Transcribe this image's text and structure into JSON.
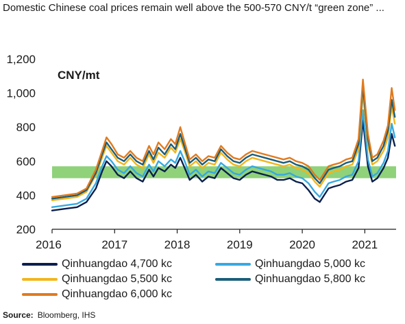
{
  "title": "Domestic Chinese coal prices remain well above the 500-570 CNY/t “green zone” ...",
  "source": {
    "label": "Source:",
    "text": "Bloomberg, IHS"
  },
  "chart_data": {
    "type": "line",
    "title": "Domestic Chinese coal prices remain well above the 500-570 CNY/t “green zone” ...",
    "ylabel": "CNY/mt",
    "xlabel": "",
    "xlim": [
      2016,
      2021.5
    ],
    "ylim": [
      200,
      1200
    ],
    "x_ticks": [
      "2016",
      "2017",
      "2018",
      "2019",
      "2020",
      "2021"
    ],
    "y_ticks": [
      "200",
      "400",
      "600",
      "800",
      "1,000",
      "1,200"
    ],
    "grid": false,
    "legend": "bottom",
    "band": {
      "low": 500,
      "high": 570,
      "color": "#8fd27a"
    },
    "x": [
      2016.0,
      2016.2,
      2016.4,
      2016.55,
      2016.7,
      2016.8,
      2016.87,
      2016.95,
      2017.05,
      2017.15,
      2017.25,
      2017.35,
      2017.45,
      2017.55,
      2017.62,
      2017.7,
      2017.8,
      2017.9,
      2017.97,
      2018.05,
      2018.12,
      2018.2,
      2018.3,
      2018.4,
      2018.5,
      2018.6,
      2018.7,
      2018.8,
      2018.9,
      2019.0,
      2019.1,
      2019.2,
      2019.3,
      2019.4,
      2019.5,
      2019.6,
      2019.7,
      2019.8,
      2019.9,
      2020.0,
      2020.1,
      2020.2,
      2020.28,
      2020.35,
      2020.42,
      2020.5,
      2020.6,
      2020.7,
      2020.8,
      2020.9,
      2020.97,
      2021.05,
      2021.12,
      2021.2,
      2021.3,
      2021.37,
      2021.43,
      2021.48
    ],
    "series": [
      {
        "name": "Qinhuangdao 4,700 kc",
        "color": "#0b1f4d",
        "values": [
          310,
          320,
          330,
          360,
          440,
          540,
          600,
          570,
          520,
          500,
          540,
          500,
          480,
          550,
          510,
          560,
          540,
          580,
          560,
          620,
          560,
          490,
          520,
          480,
          510,
          500,
          560,
          530,
          500,
          490,
          520,
          540,
          530,
          520,
          510,
          490,
          490,
          500,
          480,
          470,
          430,
          380,
          360,
          400,
          440,
          450,
          460,
          480,
          490,
          560,
          840,
          570,
          480,
          500,
          560,
          620,
          760,
          690
        ]
      },
      {
        "name": "Qinhuangdao 5,000 kc",
        "color": "#36a9e1",
        "values": [
          330,
          340,
          350,
          380,
          470,
          570,
          630,
          600,
          550,
          530,
          570,
          530,
          510,
          580,
          540,
          600,
          570,
          610,
          590,
          660,
          600,
          520,
          550,
          510,
          540,
          530,
          590,
          560,
          530,
          520,
          550,
          570,
          560,
          550,
          540,
          520,
          520,
          530,
          510,
          500,
          470,
          420,
          390,
          430,
          470,
          480,
          490,
          510,
          520,
          600,
          900,
          610,
          510,
          530,
          590,
          660,
          820,
          740
        ]
      },
      {
        "name": "Qinhuangdao 5,500 kc",
        "color": "#f2b51c",
        "values": [
          370,
          380,
          390,
          420,
          520,
          620,
          690,
          650,
          600,
          580,
          620,
          580,
          560,
          640,
          590,
          650,
          620,
          680,
          650,
          730,
          660,
          570,
          600,
          560,
          590,
          580,
          650,
          610,
          580,
          570,
          600,
          620,
          610,
          600,
          590,
          580,
          570,
          580,
          560,
          550,
          530,
          480,
          450,
          490,
          530,
          540,
          550,
          570,
          580,
          670,
          1000,
          700,
          580,
          600,
          660,
          740,
          920,
          820
        ]
      },
      {
        "name": "Qinhuangdao 5,800 kc",
        "color": "#1b5e7a",
        "values": [
          380,
          390,
          400,
          430,
          530,
          640,
          710,
          670,
          620,
          600,
          640,
          600,
          580,
          660,
          610,
          680,
          640,
          700,
          670,
          760,
          680,
          590,
          620,
          580,
          610,
          600,
          670,
          630,
          600,
          590,
          620,
          640,
          630,
          620,
          610,
          600,
          590,
          600,
          580,
          570,
          550,
          500,
          470,
          510,
          550,
          560,
          570,
          590,
          600,
          700,
          1040,
          730,
          600,
          620,
          690,
          780,
          960,
          860
        ]
      },
      {
        "name": "Qinhuangdao 6,000 kc",
        "color": "#e07a1f",
        "values": [
          390,
          400,
          410,
          440,
          550,
          660,
          740,
          700,
          640,
          620,
          660,
          620,
          600,
          690,
          640,
          710,
          670,
          730,
          700,
          800,
          710,
          610,
          640,
          600,
          630,
          620,
          690,
          650,
          620,
          610,
          640,
          660,
          650,
          640,
          630,
          620,
          610,
          620,
          600,
          590,
          570,
          520,
          490,
          530,
          570,
          580,
          590,
          610,
          620,
          730,
          1080,
          760,
          620,
          640,
          720,
          810,
          1030,
          900
        ]
      }
    ]
  }
}
